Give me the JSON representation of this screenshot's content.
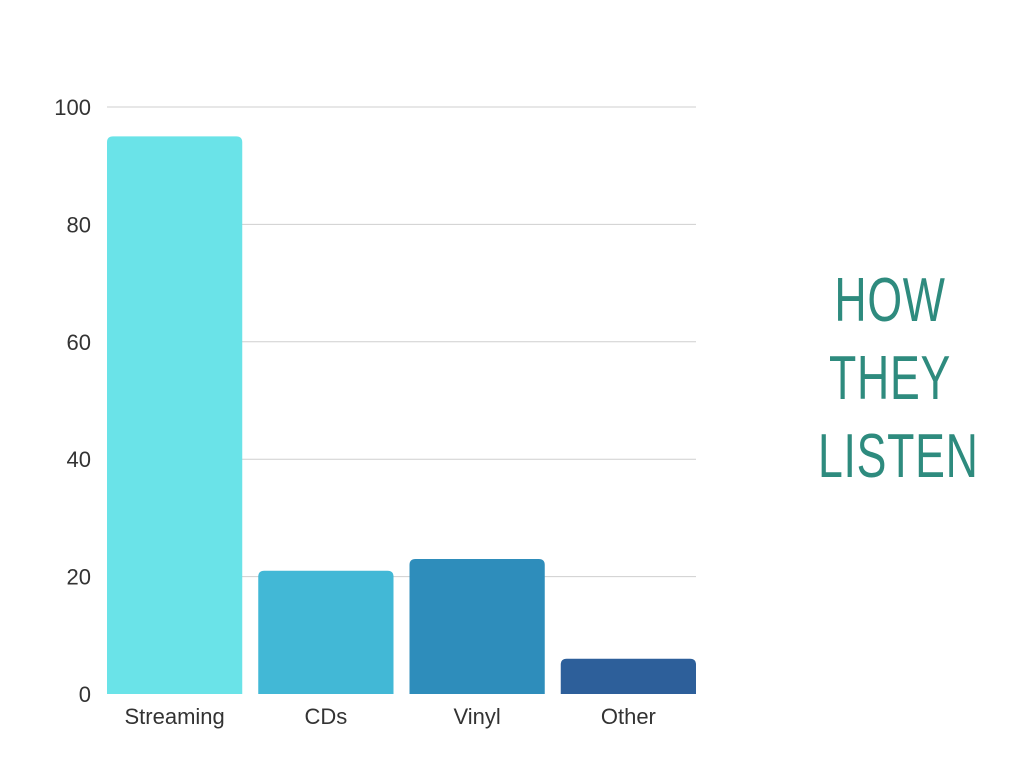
{
  "chart_data": {
    "type": "bar",
    "title_lines": [
      "HOW",
      "THEY",
      "LISTEN"
    ],
    "categories": [
      "Streaming",
      "CDs",
      "Vinyl",
      "Other"
    ],
    "values": [
      95,
      21,
      23,
      6
    ],
    "bar_colors": [
      "#6ae3e8",
      "#42b8d6",
      "#2e8dbb",
      "#2d5f9a"
    ],
    "ylim": [
      0,
      100
    ],
    "yticks": [
      0,
      20,
      40,
      60,
      80,
      100
    ],
    "grid": true,
    "xlabel": "",
    "ylabel": ""
  },
  "colors": {
    "title": "#2e8b7e",
    "grid": "#cfcfcf",
    "text": "#333333",
    "background": "#ffffff"
  }
}
